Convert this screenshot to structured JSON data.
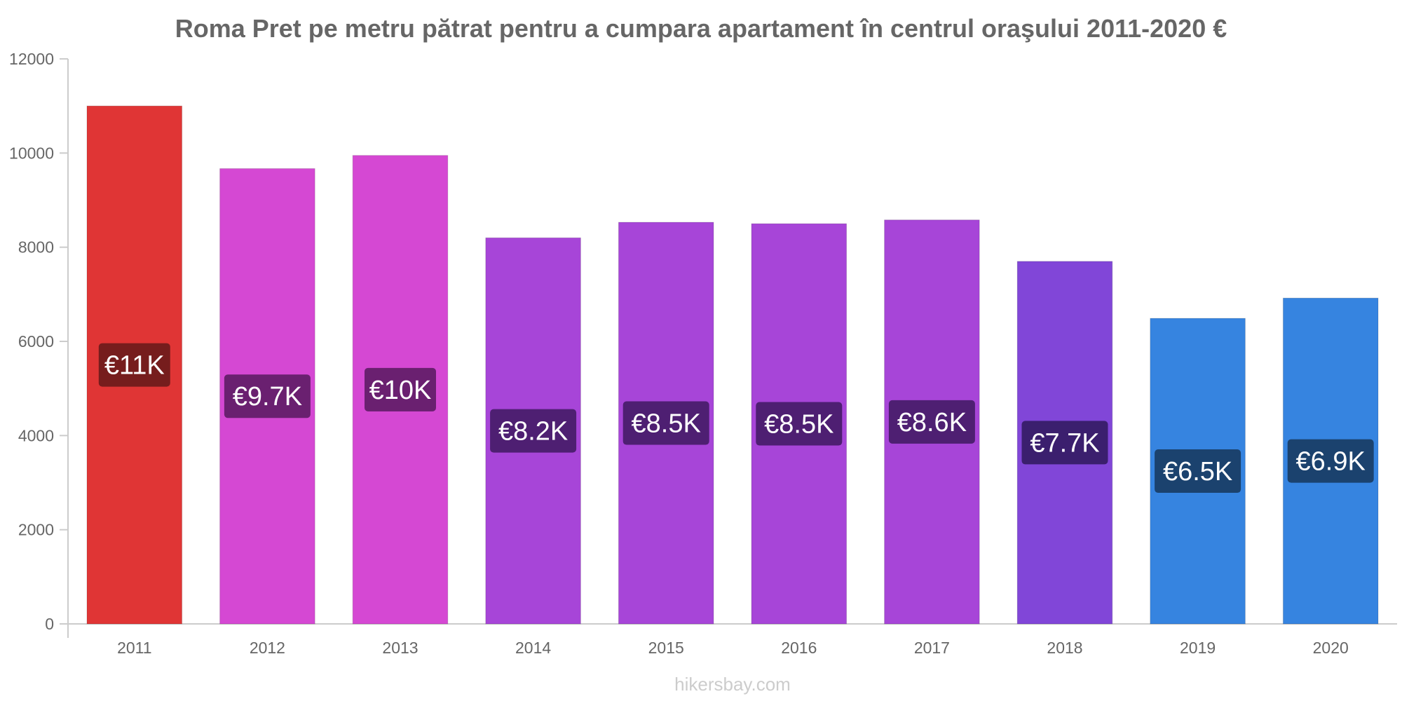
{
  "chart_data": {
    "type": "bar",
    "title": "Roma Pret pe metru pătrat pentru a cumpara apartament în centrul oraşului 2011-2020 €",
    "categories": [
      "2011",
      "2012",
      "2013",
      "2014",
      "2015",
      "2016",
      "2017",
      "2018",
      "2019",
      "2020"
    ],
    "values": [
      11000,
      9670,
      9950,
      8200,
      8530,
      8500,
      8580,
      7700,
      6490,
      6920
    ],
    "value_labels": [
      "€11K",
      "€9.7K",
      "€10K",
      "€8.2K",
      "€8.5K",
      "€8.5K",
      "€8.6K",
      "€7.7K",
      "€6.5K",
      "€6.9K"
    ],
    "bar_colors": [
      "#e03535",
      "#d548d3",
      "#d548d3",
      "#a745d8",
      "#a745d8",
      "#a745d8",
      "#a745d8",
      "#8146d8",
      "#3684e0",
      "#3684e0"
    ],
    "label_box_colors": [
      "#761d1d",
      "#6a2070",
      "#6a2070",
      "#4e1f72",
      "#4e1f72",
      "#4e1f72",
      "#4e1f72",
      "#3b1f6e",
      "#1b426e",
      "#1b426e"
    ],
    "y_ticks": [
      "0",
      "2000",
      "4000",
      "6000",
      "8000",
      "10000",
      "12000"
    ],
    "xlabel": "",
    "ylabel": "",
    "ylim": [
      0,
      12000
    ],
    "grid": false,
    "legend": "none"
  },
  "watermark": "hikersbay.com"
}
